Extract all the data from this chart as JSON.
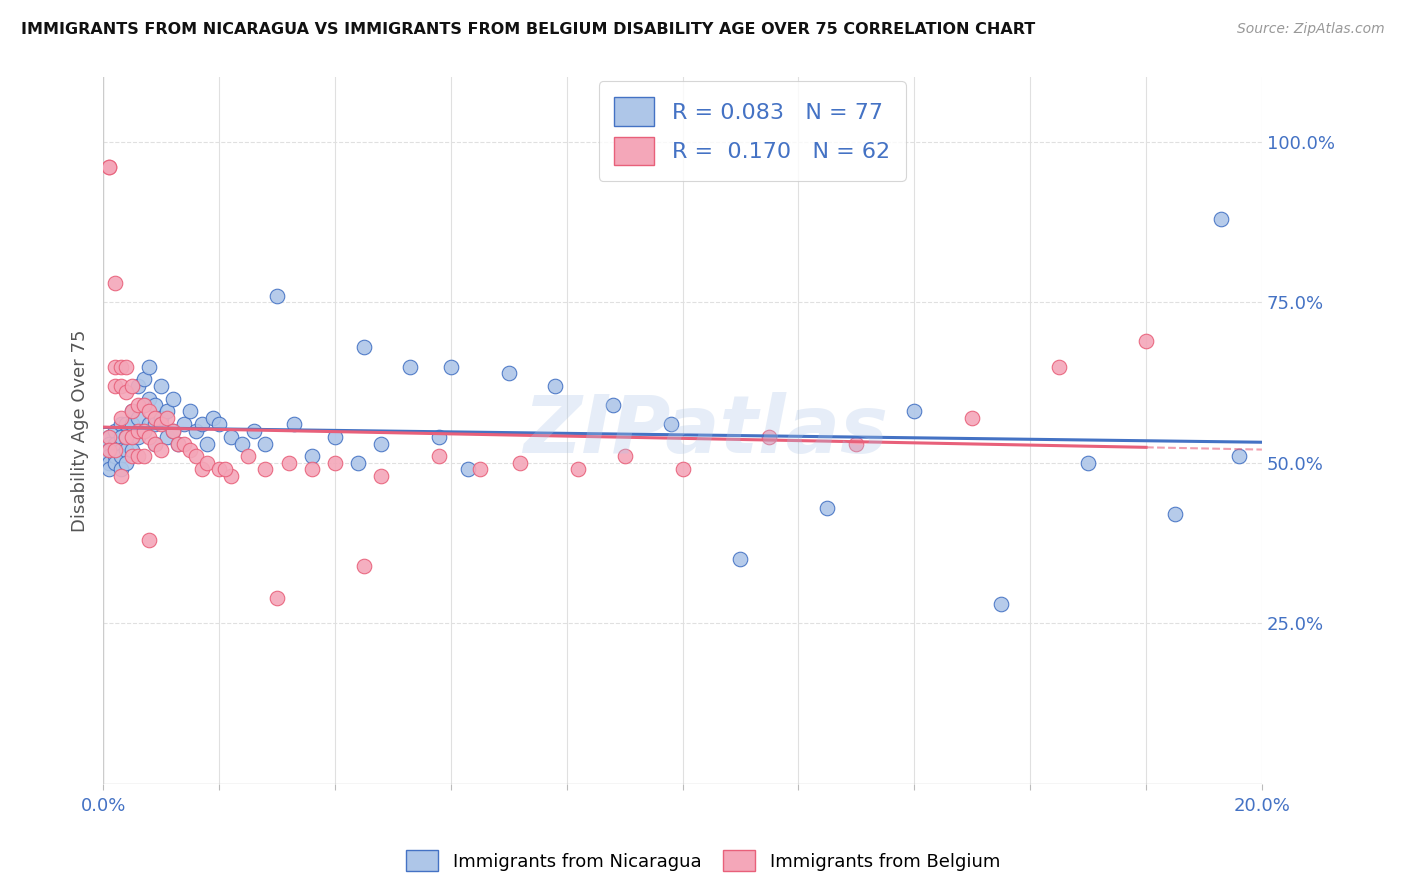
{
  "title": "IMMIGRANTS FROM NICARAGUA VS IMMIGRANTS FROM BELGIUM DISABILITY AGE OVER 75 CORRELATION CHART",
  "source": "Source: ZipAtlas.com",
  "ylabel": "Disability Age Over 75",
  "xlim": [
    0.0,
    0.2
  ],
  "ylim": [
    0.0,
    1.1
  ],
  "nicaragua_color": "#aec6e8",
  "belgium_color": "#f4a7b9",
  "nicaragua_line_color": "#4472c4",
  "belgium_line_color": "#e8607a",
  "R_nicaragua": 0.083,
  "N_nicaragua": 77,
  "R_belgium": 0.17,
  "N_belgium": 62,
  "nicaragua_x": [
    0.001,
    0.001,
    0.001,
    0.001,
    0.001,
    0.001,
    0.002,
    0.002,
    0.002,
    0.002,
    0.002,
    0.003,
    0.003,
    0.003,
    0.003,
    0.003,
    0.004,
    0.004,
    0.004,
    0.004,
    0.005,
    0.005,
    0.005,
    0.005,
    0.006,
    0.006,
    0.006,
    0.007,
    0.007,
    0.007,
    0.008,
    0.008,
    0.008,
    0.009,
    0.009,
    0.009,
    0.01,
    0.01,
    0.011,
    0.011,
    0.012,
    0.012,
    0.013,
    0.014,
    0.015,
    0.016,
    0.017,
    0.018,
    0.019,
    0.02,
    0.022,
    0.024,
    0.026,
    0.028,
    0.03,
    0.033,
    0.036,
    0.04,
    0.044,
    0.048,
    0.053,
    0.058,
    0.063,
    0.07,
    0.078,
    0.088,
    0.098,
    0.11,
    0.125,
    0.14,
    0.155,
    0.17,
    0.185,
    0.193,
    0.196,
    0.06,
    0.045
  ],
  "nicaragua_y": [
    0.54,
    0.53,
    0.52,
    0.51,
    0.5,
    0.49,
    0.55,
    0.53,
    0.52,
    0.51,
    0.5,
    0.56,
    0.54,
    0.52,
    0.51,
    0.49,
    0.56,
    0.54,
    0.52,
    0.5,
    0.58,
    0.56,
    0.54,
    0.52,
    0.62,
    0.57,
    0.54,
    0.63,
    0.59,
    0.55,
    0.65,
    0.6,
    0.56,
    0.59,
    0.56,
    0.53,
    0.62,
    0.57,
    0.58,
    0.54,
    0.6,
    0.55,
    0.53,
    0.56,
    0.58,
    0.55,
    0.56,
    0.53,
    0.57,
    0.56,
    0.54,
    0.53,
    0.55,
    0.53,
    0.76,
    0.56,
    0.51,
    0.54,
    0.5,
    0.53,
    0.65,
    0.54,
    0.49,
    0.64,
    0.62,
    0.59,
    0.56,
    0.35,
    0.43,
    0.58,
    0.28,
    0.5,
    0.42,
    0.88,
    0.51,
    0.65,
    0.68
  ],
  "belgium_x": [
    0.001,
    0.001,
    0.001,
    0.001,
    0.002,
    0.002,
    0.002,
    0.002,
    0.003,
    0.003,
    0.003,
    0.003,
    0.004,
    0.004,
    0.004,
    0.005,
    0.005,
    0.005,
    0.005,
    0.006,
    0.006,
    0.006,
    0.007,
    0.007,
    0.007,
    0.008,
    0.008,
    0.009,
    0.009,
    0.01,
    0.01,
    0.011,
    0.012,
    0.013,
    0.014,
    0.015,
    0.016,
    0.017,
    0.018,
    0.02,
    0.022,
    0.025,
    0.028,
    0.032,
    0.036,
    0.04,
    0.048,
    0.058,
    0.065,
    0.072,
    0.082,
    0.09,
    0.1,
    0.115,
    0.13,
    0.15,
    0.165,
    0.18,
    0.008,
    0.021,
    0.03,
    0.045
  ],
  "belgium_y": [
    0.96,
    0.96,
    0.54,
    0.52,
    0.78,
    0.65,
    0.62,
    0.52,
    0.65,
    0.62,
    0.57,
    0.48,
    0.65,
    0.61,
    0.54,
    0.62,
    0.58,
    0.54,
    0.51,
    0.59,
    0.55,
    0.51,
    0.59,
    0.55,
    0.51,
    0.58,
    0.54,
    0.57,
    0.53,
    0.56,
    0.52,
    0.57,
    0.55,
    0.53,
    0.53,
    0.52,
    0.51,
    0.49,
    0.5,
    0.49,
    0.48,
    0.51,
    0.49,
    0.5,
    0.49,
    0.5,
    0.48,
    0.51,
    0.49,
    0.5,
    0.49,
    0.51,
    0.49,
    0.54,
    0.53,
    0.57,
    0.65,
    0.69,
    0.38,
    0.49,
    0.29,
    0.34
  ],
  "watermark": "ZIPatlas",
  "background_color": "#ffffff",
  "grid_color": "#e0e0e0"
}
